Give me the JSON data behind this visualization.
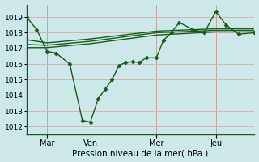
{
  "xlabel": "Pression niveau de la mer( hPa )",
  "bg_color": "#cce8e8",
  "grid_color": "#ddaaaa",
  "line_color": "#1a5c1a",
  "ylim": [
    1011.5,
    1019.8
  ],
  "y_ticks": [
    1012,
    1013,
    1014,
    1015,
    1016,
    1017,
    1018,
    1019
  ],
  "x_ticks_pos": [
    0.09,
    0.28,
    0.57,
    0.83
  ],
  "x_ticks_labels": [
    "Mar",
    "Ven",
    "Mer",
    "Jeu"
  ],
  "vlines_x": [
    0.09,
    0.28,
    0.57,
    0.83
  ],
  "series1_x": [
    0.0,
    0.045,
    0.09,
    0.13,
    0.19,
    0.245,
    0.28,
    0.315,
    0.345,
    0.375,
    0.405,
    0.435,
    0.465,
    0.495,
    0.525,
    0.57,
    0.6,
    0.635,
    0.67,
    0.73,
    0.78,
    0.83,
    0.875,
    0.93,
    1.0
  ],
  "series1_y": [
    1019.0,
    1018.2,
    1016.8,
    1016.7,
    1016.0,
    1012.4,
    1012.3,
    1013.8,
    1014.4,
    1015.0,
    1015.9,
    1016.1,
    1016.15,
    1016.1,
    1016.4,
    1016.4,
    1017.5,
    1018.0,
    1018.65,
    1018.2,
    1018.0,
    1019.35,
    1018.5,
    1017.9,
    1018.0
  ],
  "series2_x": [
    0.0,
    0.09,
    0.28,
    0.57,
    0.83,
    1.0
  ],
  "series2_y": [
    1017.05,
    1017.05,
    1017.3,
    1017.85,
    1018.05,
    1018.05
  ],
  "series3_x": [
    0.0,
    0.09,
    0.28,
    0.57,
    0.83,
    1.0
  ],
  "series3_y": [
    1017.25,
    1017.2,
    1017.45,
    1018.0,
    1018.15,
    1018.15
  ],
  "series4_x": [
    0.0,
    0.09,
    0.28,
    0.57,
    0.83,
    1.0
  ],
  "series4_y": [
    1017.55,
    1017.35,
    1017.6,
    1018.1,
    1018.25,
    1018.25
  ],
  "xlim": [
    0.0,
    1.0
  ]
}
